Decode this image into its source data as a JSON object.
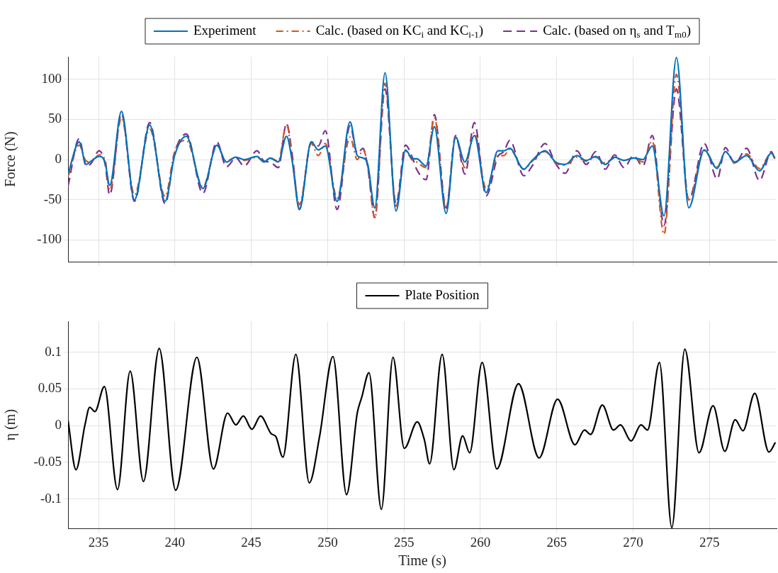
{
  "chart_data": [
    {
      "type": "line",
      "ylabel": "Force (N)",
      "xlim": [
        233,
        279.4
      ],
      "ylim": [
        -127,
        128
      ],
      "xticks": [
        235,
        240,
        245,
        250,
        255,
        260,
        265,
        270,
        275
      ],
      "yticks": [
        -100,
        -50,
        0,
        50,
        100
      ],
      "grid": true,
      "legend": "top",
      "tick_labels": "y",
      "x": [
        233.0,
        233.73,
        234.19,
        234.5,
        235.04,
        235.42,
        235.73,
        236.5,
        237.35,
        238.35,
        239.36,
        239.98,
        240.75,
        241.83,
        242.75,
        243.37,
        243.99,
        244.53,
        245.38,
        245.84,
        246.23,
        246.77,
        247.31,
        247.69,
        248.15,
        248.93,
        249.39,
        249.85,
        250.62,
        251.47,
        251.94,
        252.32,
        252.63,
        253.09,
        253.76,
        254.48,
        255.1,
        255.56,
        255.83,
        256.45,
        256.99,
        257.76,
        258.38,
        258.99,
        259.61,
        260.38,
        261.15,
        261.54,
        261.93,
        262.85,
        263.39,
        264.24,
        264.93,
        265.55,
        266.32,
        266.94,
        267.56,
        268.18,
        268.79,
        269.41,
        270.03,
        270.64,
        271.26,
        272.03,
        272.84,
        273.65,
        274.66,
        275.51,
        276.05,
        276.66,
        277.44,
        278.28,
        279.06,
        279.29
      ],
      "series": [
        {
          "name": "Experiment",
          "color": "#0072bd",
          "line_style": "solid",
          "values": [
            -18,
            22,
            -6,
            -2,
            4,
            -3,
            -32,
            60,
            -50,
            43,
            -52,
            5,
            29,
            -36,
            18,
            -3,
            3,
            0,
            4,
            -3,
            2,
            -3,
            29,
            -3,
            -62,
            22,
            12,
            17,
            -52,
            47,
            5,
            2,
            -6,
            -60,
            108,
            -64,
            12,
            1,
            1,
            -8,
            41,
            -67,
            28,
            -3,
            30,
            -41,
            11,
            11,
            14,
            -12,
            -1,
            11,
            -3,
            -6,
            5,
            -1,
            4,
            -6,
            3,
            -1,
            2,
            0,
            17,
            -70,
            127,
            -60,
            12,
            -11,
            10,
            -3,
            5,
            -14,
            8,
            2
          ]
        },
        {
          "name": "Calc. (based on KC$_{i}$ and KC$_{i-1}$)",
          "color": "#d95319",
          "line_style": "dashdot",
          "values": [
            -21,
            18,
            -2,
            -3,
            6,
            0,
            -38,
            52,
            -44,
            38,
            -46,
            10,
            24,
            -34,
            17,
            -2,
            3,
            -1,
            3,
            -3,
            2,
            -2,
            44,
            0,
            -56,
            20,
            5,
            20,
            -48,
            28,
            0,
            12,
            -8,
            -73,
            95,
            -58,
            10,
            -1,
            -3,
            -10,
            52,
            -62,
            28,
            -10,
            34,
            -36,
            5,
            5,
            13,
            -12,
            -2,
            10,
            -4,
            -7,
            3,
            -2,
            3,
            -4,
            2,
            -1,
            2,
            -3,
            23,
            -93,
            106,
            -50,
            11,
            -9,
            10,
            -4,
            7,
            -11,
            8,
            1
          ]
        },
        {
          "name": "Calc. (based on η$_{s}$ and T$_{m0}$)",
          "color": "#7e2f8e",
          "line_style": "dashed",
          "values": [
            -33,
            26,
            -8,
            -5,
            11,
            -5,
            -44,
            57,
            -52,
            46,
            -55,
            8,
            32,
            -42,
            22,
            -9,
            2,
            -8,
            11,
            -2,
            -3,
            -10,
            45,
            5,
            -62,
            22,
            17,
            36,
            -62,
            42,
            8,
            14,
            -10,
            -72,
            88,
            -55,
            18,
            2,
            -12,
            -25,
            56,
            -60,
            30,
            -18,
            46,
            -45,
            4,
            10,
            24,
            -20,
            -8,
            20,
            -5,
            -17,
            11,
            -6,
            10,
            -12,
            6,
            -10,
            5,
            -8,
            30,
            -82,
            88,
            -50,
            20,
            -24,
            15,
            -5,
            14,
            -26,
            10,
            0
          ]
        }
      ]
    },
    {
      "type": "line",
      "xlabel": "Time (s)",
      "ylabel": "η (m)",
      "xlim": [
        233,
        279.4
      ],
      "ylim": [
        -0.14,
        0.142
      ],
      "xticks": [
        235,
        240,
        245,
        250,
        255,
        260,
        265,
        270,
        275
      ],
      "yticks": [
        -0.1,
        -0.05,
        0,
        0.05,
        0.1
      ],
      "grid": true,
      "legend": "top",
      "x": [
        233,
        233.52,
        234.11,
        234.42,
        234.76,
        235.38,
        236.24,
        237.07,
        237.94,
        238.97,
        240.05,
        241.44,
        242.52,
        243.45,
        243.99,
        244.48,
        245.04,
        245.61,
        246.3,
        246.61,
        247.07,
        247.92,
        248.8,
        249.47,
        250.35,
        251.24,
        251.94,
        252.24,
        252.71,
        253.52,
        254.28,
        255.02,
        255.87,
        256.33,
        256.68,
        257.5,
        258.27,
        258.84,
        259.3,
        260.12,
        261.08,
        262.5,
        263.85,
        265.06,
        266.2,
        266.82,
        267.22,
        267.99,
        268.72,
        269.18,
        269.87,
        270.52,
        270.95,
        271.73,
        272.54,
        273.39,
        274.32,
        275.24,
        276.01,
        276.69,
        277.2,
        277.97,
        278.9,
        279.32
      ],
      "series": [
        {
          "name": "Plate Position",
          "color": "#000000",
          "line_style": "solid",
          "values": [
            0.007,
            -0.06,
            0.001,
            0.025,
            0.019,
            0.053,
            -0.087,
            0.074,
            -0.076,
            0.105,
            -0.088,
            0.093,
            -0.059,
            0.017,
            0.001,
            0.013,
            -0.005,
            0.013,
            -0.011,
            -0.015,
            -0.043,
            0.097,
            -0.078,
            -0.015,
            0.094,
            -0.094,
            0.017,
            0.039,
            0.072,
            -0.114,
            0.093,
            -0.031,
            0.005,
            -0.019,
            -0.052,
            0.097,
            -0.06,
            -0.014,
            -0.037,
            0.086,
            -0.059,
            0.057,
            -0.044,
            0.036,
            -0.026,
            -0.006,
            -0.012,
            0.028,
            -0.006,
            0.001,
            -0.021,
            0.001,
            -0.006,
            0.086,
            -0.139,
            0.104,
            -0.037,
            0.027,
            -0.035,
            0.008,
            -0.007,
            0.044,
            -0.036,
            -0.023
          ]
        }
      ]
    }
  ]
}
